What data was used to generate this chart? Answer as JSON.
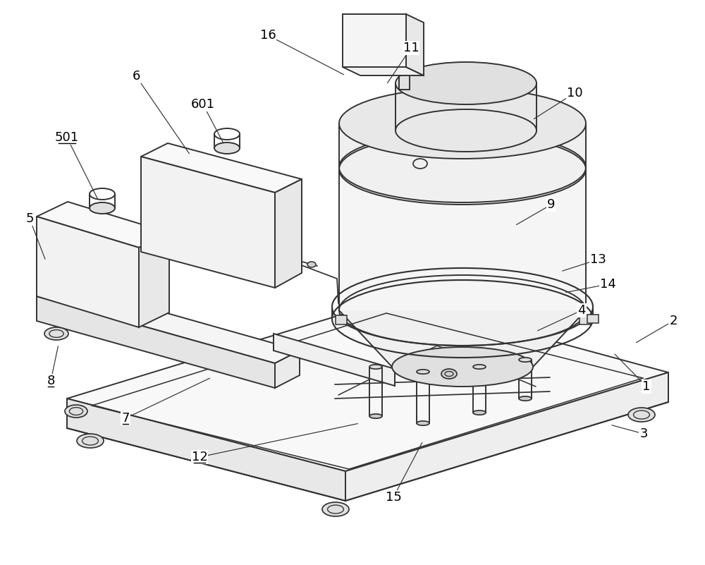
{
  "background_color": "#ffffff",
  "line_color": "#333333",
  "line_width": 1.4,
  "label_font_size": 13,
  "underlined_labels": [
    "501",
    "7",
    "8",
    "12"
  ]
}
